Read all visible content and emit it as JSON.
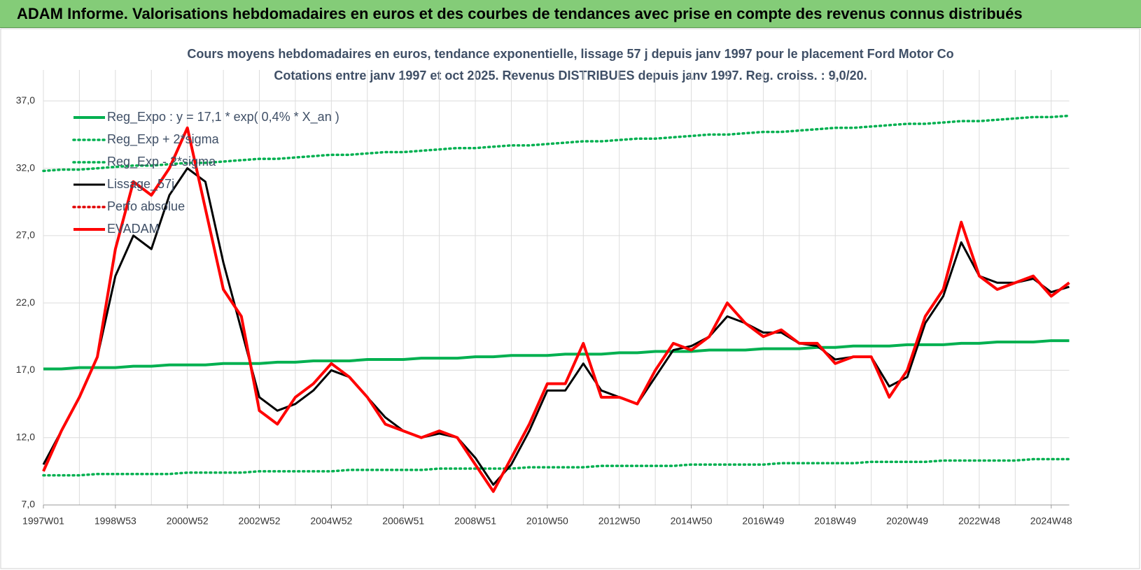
{
  "header": {
    "title": "ADAM Informe. Valorisations hebdomadaires en euros et des courbes de tendances avec prise en compte des revenus connus distribués"
  },
  "chart_data": {
    "type": "line",
    "title": "Cours moyens hebdomadaires en euros, tendance exponentielle, lissage 57 j depuis janv 1997 pour le placement Ford Motor Co",
    "subtitle": "Cotations entre janv 1997 et oct 2025. Revenus DISTRIBUES depuis janv 1997. Reg. croiss. : 9,0/20.",
    "categories": [
      "1997W01",
      null,
      null,
      null,
      "1998W53",
      null,
      null,
      null,
      "2000W52",
      null,
      null,
      null,
      "2002W52",
      null,
      null,
      null,
      "2004W52",
      null,
      null,
      null,
      "2006W51",
      null,
      null,
      null,
      "2008W51",
      null,
      null,
      null,
      "2010W50",
      null,
      null,
      null,
      "2012W50",
      null,
      null,
      null,
      "2014W50",
      null,
      null,
      null,
      "2016W49",
      null,
      null,
      null,
      "2018W49",
      null,
      null,
      null,
      "2020W49",
      null,
      null,
      null,
      "2022W48",
      null,
      null,
      null,
      "2024W48",
      null
    ],
    "ylim": [
      7,
      39.3
    ],
    "yticks": [
      {
        "value": 7,
        "label": "7,0"
      },
      {
        "value": 12,
        "label": "12,0"
      },
      {
        "value": 17,
        "label": "17,0"
      },
      {
        "value": 22,
        "label": "22,0"
      },
      {
        "value": 27,
        "label": "27,0"
      },
      {
        "value": 32,
        "label": "32,0"
      },
      {
        "value": 37,
        "label": "37,0"
      }
    ],
    "grid": true,
    "legend": "upper left",
    "series": [
      {
        "name": "Reg_Expo : y = 17,1 * exp( 0,4% *  X_an )",
        "color": "#00b050",
        "line_style": "solid",
        "values": [
          17.1,
          17.1,
          17.2,
          17.2,
          17.2,
          17.3,
          17.3,
          17.4,
          17.4,
          17.4,
          17.5,
          17.5,
          17.5,
          17.6,
          17.6,
          17.7,
          17.7,
          17.7,
          17.8,
          17.8,
          17.8,
          17.9,
          17.9,
          17.9,
          18.0,
          18.0,
          18.1,
          18.1,
          18.1,
          18.2,
          18.2,
          18.2,
          18.3,
          18.3,
          18.4,
          18.4,
          18.4,
          18.5,
          18.5,
          18.5,
          18.6,
          18.6,
          18.6,
          18.7,
          18.7,
          18.8,
          18.8,
          18.8,
          18.9,
          18.9,
          18.9,
          19.0,
          19.0,
          19.1,
          19.1,
          19.1,
          19.2,
          19.2
        ]
      },
      {
        "name": "Reg_Exp + 2*sigma",
        "color": "#00b050",
        "line_style": "dotted",
        "values": [
          31.8,
          31.9,
          31.9,
          32.0,
          32.1,
          32.2,
          32.2,
          32.3,
          32.4,
          32.4,
          32.5,
          32.6,
          32.7,
          32.7,
          32.8,
          32.9,
          33.0,
          33.0,
          33.1,
          33.2,
          33.2,
          33.3,
          33.4,
          33.5,
          33.5,
          33.6,
          33.7,
          33.7,
          33.8,
          33.9,
          34.0,
          34.0,
          34.1,
          34.2,
          34.2,
          34.3,
          34.4,
          34.5,
          34.5,
          34.6,
          34.7,
          34.7,
          34.8,
          34.9,
          35.0,
          35.0,
          35.1,
          35.2,
          35.3,
          35.3,
          35.4,
          35.5,
          35.5,
          35.6,
          35.7,
          35.8,
          35.8,
          35.9
        ]
      },
      {
        "name": "Reg_Exp - 2*sigma",
        "color": "#00b050",
        "line_style": "dotted",
        "values": [
          9.2,
          9.2,
          9.2,
          9.3,
          9.3,
          9.3,
          9.3,
          9.3,
          9.4,
          9.4,
          9.4,
          9.4,
          9.5,
          9.5,
          9.5,
          9.5,
          9.5,
          9.6,
          9.6,
          9.6,
          9.6,
          9.6,
          9.7,
          9.7,
          9.7,
          9.7,
          9.7,
          9.8,
          9.8,
          9.8,
          9.8,
          9.9,
          9.9,
          9.9,
          9.9,
          9.9,
          10.0,
          10.0,
          10.0,
          10.0,
          10.0,
          10.1,
          10.1,
          10.1,
          10.1,
          10.1,
          10.2,
          10.2,
          10.2,
          10.2,
          10.3,
          10.3,
          10.3,
          10.3,
          10.3,
          10.4,
          10.4,
          10.4
        ]
      },
      {
        "name": "Lissage_57j",
        "color": "#000000",
        "line_style": "solid",
        "values": [
          10,
          12.5,
          15,
          18,
          24,
          27,
          26,
          30,
          32,
          31,
          25,
          20,
          15,
          14,
          14.5,
          15.5,
          17,
          16.5,
          15,
          13.5,
          12.5,
          12,
          12.3,
          12,
          10.5,
          8.5,
          10,
          12.5,
          15.5,
          15.5,
          17.5,
          15.5,
          15,
          14.5,
          16.5,
          18.5,
          18.8,
          19.5,
          21,
          20.5,
          19.8,
          19.8,
          19,
          18.8,
          17.8,
          18,
          18,
          15.8,
          16.5,
          20.5,
          22.5,
          26.5,
          24,
          23.5,
          23.5,
          23.8,
          22.8,
          23.2
        ]
      },
      {
        "name": "Perfo absolue",
        "color": "#e00000",
        "line_style": "dotted",
        "values": [
          null,
          null,
          null,
          null,
          null,
          null,
          null,
          null,
          null,
          null,
          null,
          null,
          null,
          null,
          null,
          null,
          null,
          null,
          null,
          null,
          null,
          null,
          null,
          null,
          null,
          null,
          null,
          null,
          null,
          null,
          null,
          null,
          null,
          null,
          null,
          null,
          null,
          null,
          null,
          null,
          null,
          null,
          null,
          null,
          null,
          null,
          null,
          null,
          null,
          null,
          null,
          null,
          null,
          null,
          null,
          null,
          null,
          null
        ]
      },
      {
        "name": "EVADAM",
        "color": "#ff0000",
        "line_style": "solid",
        "values": [
          9.5,
          12.5,
          15,
          18,
          26,
          31,
          30,
          32,
          35,
          29,
          23,
          21,
          14,
          13,
          15,
          16,
          17.5,
          16.5,
          15,
          13,
          12.5,
          12,
          12.5,
          12,
          10,
          8,
          10.5,
          13,
          16,
          16,
          19,
          15,
          15,
          14.5,
          17,
          19,
          18.5,
          19.5,
          22,
          20.5,
          19.5,
          20,
          19,
          19,
          17.5,
          18,
          18,
          15,
          17,
          21,
          23,
          28,
          24,
          23,
          23.5,
          24,
          22.5,
          23.5
        ]
      }
    ]
  }
}
